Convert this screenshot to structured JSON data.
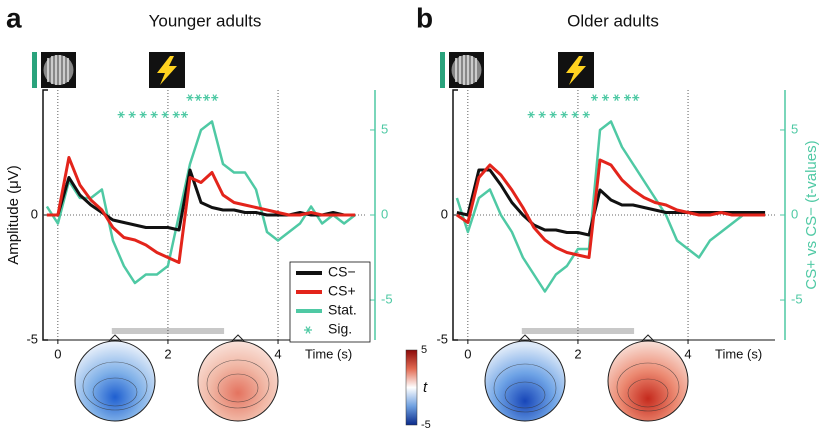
{
  "chart_data": [
    {
      "type": "line",
      "panel": "a",
      "title": "Younger adults",
      "xlabel": "Time (s)",
      "ylabel": "Amplitude (μV)",
      "xlim": [
        -0.27,
        5.58
      ],
      "xticks": [
        0,
        2,
        4
      ],
      "ylim": [
        -5,
        5
      ],
      "yticks": [
        -5,
        0
      ],
      "y2lim": [
        -7.35,
        7.35
      ],
      "y2ticks": [
        -5,
        0,
        5
      ],
      "legend": "lower right",
      "highlight": [
        0.98,
        3.02
      ],
      "x": [
        -0.2,
        0,
        0.2,
        0.4,
        0.6,
        0.8,
        1,
        1.2,
        1.4,
        1.6,
        1.8,
        2,
        2.2,
        2.4,
        2.6,
        2.8,
        3,
        3.2,
        3.4,
        3.6,
        3.8,
        4,
        4.2,
        4.4,
        4.6,
        4.8,
        5,
        5.2,
        5.4
      ],
      "series": [
        {
          "name": "CS−",
          "color": "#111111",
          "values": [
            0,
            0,
            1.5,
            0.8,
            0.4,
            0.1,
            -0.2,
            -0.3,
            -0.4,
            -0.5,
            -0.5,
            -0.5,
            -0.6,
            1.8,
            0.5,
            0.3,
            0.2,
            0.2,
            0.1,
            0.1,
            0,
            0,
            0,
            0.1,
            0,
            0,
            0.1,
            0,
            0
          ]
        },
        {
          "name": "CS+",
          "color": "#e3241b",
          "values": [
            0,
            0,
            2.3,
            1.2,
            0.6,
            0.2,
            -0.5,
            -0.9,
            -1.0,
            -1.2,
            -1.5,
            -1.7,
            -1.9,
            1.5,
            1.3,
            1.7,
            0.8,
            0.5,
            0.4,
            0.3,
            0.2,
            0.1,
            0,
            0,
            0.1,
            0,
            0,
            0,
            0
          ]
        },
        {
          "name": "Stat.",
          "color": "#4fc9a4",
          "axis": "y2",
          "values": [
            0.5,
            -0.5,
            2,
            1,
            1,
            1.5,
            -1.5,
            -3,
            -4,
            -3.5,
            -3.5,
            -3,
            0,
            3,
            5,
            5.5,
            3,
            2.5,
            2.5,
            1.5,
            -1,
            -1.5,
            -1,
            -0.5,
            0.5,
            -0.5,
            0,
            -0.5,
            0
          ]
        },
        {
          "name": "Sig.",
          "color": "#4fc9a4",
          "axis": "y2",
          "marker": "asterisk",
          "x": [
            1.15,
            1.35,
            1.55,
            1.75,
            1.95,
            2.15,
            2.3,
            2.4,
            2.55,
            2.7,
            2.85
          ],
          "values": [
            5.9,
            5.9,
            5.9,
            5.9,
            5.9,
            5.9,
            5.9,
            6.9,
            6.9,
            6.9,
            6.9
          ]
        }
      ],
      "colorbar": {
        "label": "t",
        "lim": [
          -5,
          5
        ],
        "ticks": [
          5,
          -5
        ]
      }
    },
    {
      "type": "line",
      "panel": "b",
      "title": "Older adults",
      "xlabel": "Time (s)",
      "y2label": "CS+ vs CS− (t-values)",
      "xlim": [
        -0.27,
        5.58
      ],
      "xticks": [
        0,
        2,
        4
      ],
      "ylim": [
        -5,
        5
      ],
      "yticks": [
        -5,
        0
      ],
      "y2lim": [
        -7.35,
        7.35
      ],
      "y2ticks": [
        -5,
        0,
        5
      ],
      "highlight": [
        0.98,
        3.02
      ],
      "x": [
        -0.2,
        0,
        0.2,
        0.4,
        0.6,
        0.8,
        1,
        1.2,
        1.4,
        1.6,
        1.8,
        2,
        2.2,
        2.4,
        2.6,
        2.8,
        3,
        3.2,
        3.4,
        3.6,
        3.8,
        4,
        4.2,
        4.4,
        4.6,
        4.8,
        5,
        5.2,
        5.4
      ],
      "series": [
        {
          "color": "#111111",
          "values": [
            0.1,
            0,
            1.8,
            1.8,
            1.2,
            0.5,
            0,
            -0.4,
            -0.6,
            -0.6,
            -0.7,
            -0.7,
            -0.8,
            1.0,
            0.6,
            0.4,
            0.4,
            0.3,
            0.2,
            0.1,
            0.1,
            0.1,
            0.1,
            0.1,
            0.1,
            0.1,
            0.1,
            0.1,
            0.1
          ]
        },
        {
          "color": "#e3241b",
          "values": [
            0,
            -0.3,
            1.5,
            2.0,
            1.6,
            1.0,
            0.3,
            -0.5,
            -1.0,
            -1.3,
            -1.5,
            -1.6,
            -1.7,
            2.2,
            2.0,
            1.4,
            1.0,
            0.7,
            0.5,
            0.4,
            0.2,
            0.1,
            0,
            0,
            0.1,
            0,
            0,
            0,
            0
          ]
        },
        {
          "color": "#4fc9a4",
          "axis": "y2",
          "values": [
            1,
            -1,
            1,
            1.5,
            0,
            -1,
            -2.5,
            -3.5,
            -4.5,
            -3.5,
            -3,
            -2,
            -2,
            5,
            5.5,
            4,
            3,
            2,
            1,
            0,
            -1.5,
            -2,
            -2.5,
            -1.5,
            -1,
            -0.5,
            0,
            0,
            0
          ]
        },
        {
          "color": "#4fc9a4",
          "axis": "y2",
          "marker": "asterisk",
          "x": [
            1.15,
            1.35,
            1.55,
            1.75,
            1.95,
            2.15,
            2.3,
            2.5,
            2.7,
            2.9,
            3.05
          ],
          "values": [
            5.9,
            5.9,
            5.9,
            5.9,
            5.9,
            5.9,
            6.9,
            6.9,
            6.9,
            6.9,
            6.9
          ]
        }
      ]
    }
  ]
}
